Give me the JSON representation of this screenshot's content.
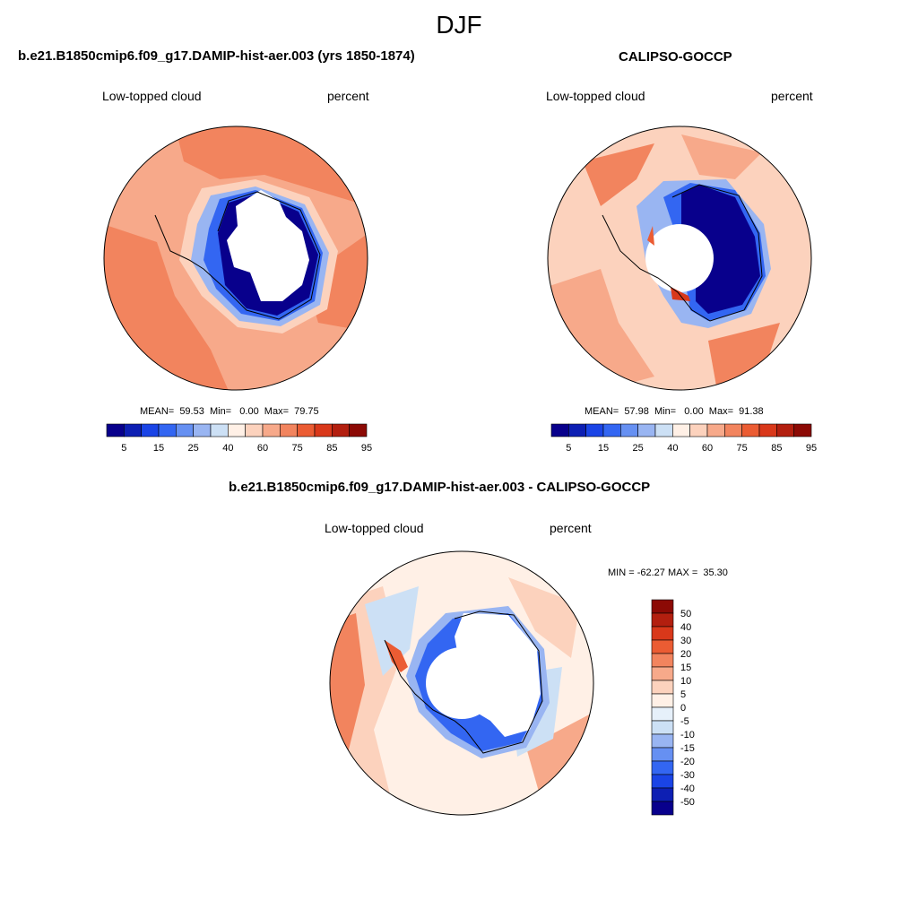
{
  "season": "DJF",
  "panels": [
    {
      "title": "b.e21.B1850cmip6.f09_g17.DAMIP-hist-aer.003 (yrs 1850-1874)",
      "left_label": "Low-topped cloud",
      "right_label": "percent",
      "stats": "MEAN=  59.53  Min=   0.00  Max=  79.75",
      "colorbar_ticks": [
        "5",
        "15",
        "25",
        "40",
        "60",
        "75",
        "85",
        "95"
      ]
    },
    {
      "title": "CALIPSO-GOCCP",
      "left_label": "Low-topped cloud",
      "right_label": "percent",
      "stats": "MEAN=  57.98  Min=   0.00  Max=  91.38",
      "colorbar_ticks": [
        "5",
        "15",
        "25",
        "40",
        "60",
        "75",
        "85",
        "95"
      ]
    },
    {
      "title": "b.e21.B1850cmip6.f09_g17.DAMIP-hist-aer.003 - CALIPSO-GOCCP",
      "left_label": "Low-topped cloud",
      "right_label": "percent",
      "stats": "MIN = -62.27 MAX =  35.30",
      "colorbar_ticks": [
        "50",
        "40",
        "30",
        "20",
        "15",
        "10",
        "5",
        "0",
        "-5",
        "-10",
        "-15",
        "-20",
        "-30",
        "-40",
        "-50"
      ]
    }
  ],
  "colors": {
    "sequential": [
      "#08008c",
      "#0d1fb3",
      "#1a44e6",
      "#3366f2",
      "#6690f2",
      "#99b5f2",
      "#cce0f5",
      "#fff0e6",
      "#fcd2bd",
      "#f7a98a",
      "#f2845e",
      "#eb5c33",
      "#d9381a",
      "#b31f0f",
      "#8c0a05"
    ],
    "diverging": [
      "#8c0a05",
      "#b31f0f",
      "#d9381a",
      "#eb5c33",
      "#f2845e",
      "#f7a98a",
      "#fcd2bd",
      "#fff0e6",
      "#e6f0fa",
      "#cce0f5",
      "#99b5f2",
      "#6690f2",
      "#3366f2",
      "#1a44e6",
      "#0d1fb3",
      "#08008c"
    ]
  }
}
